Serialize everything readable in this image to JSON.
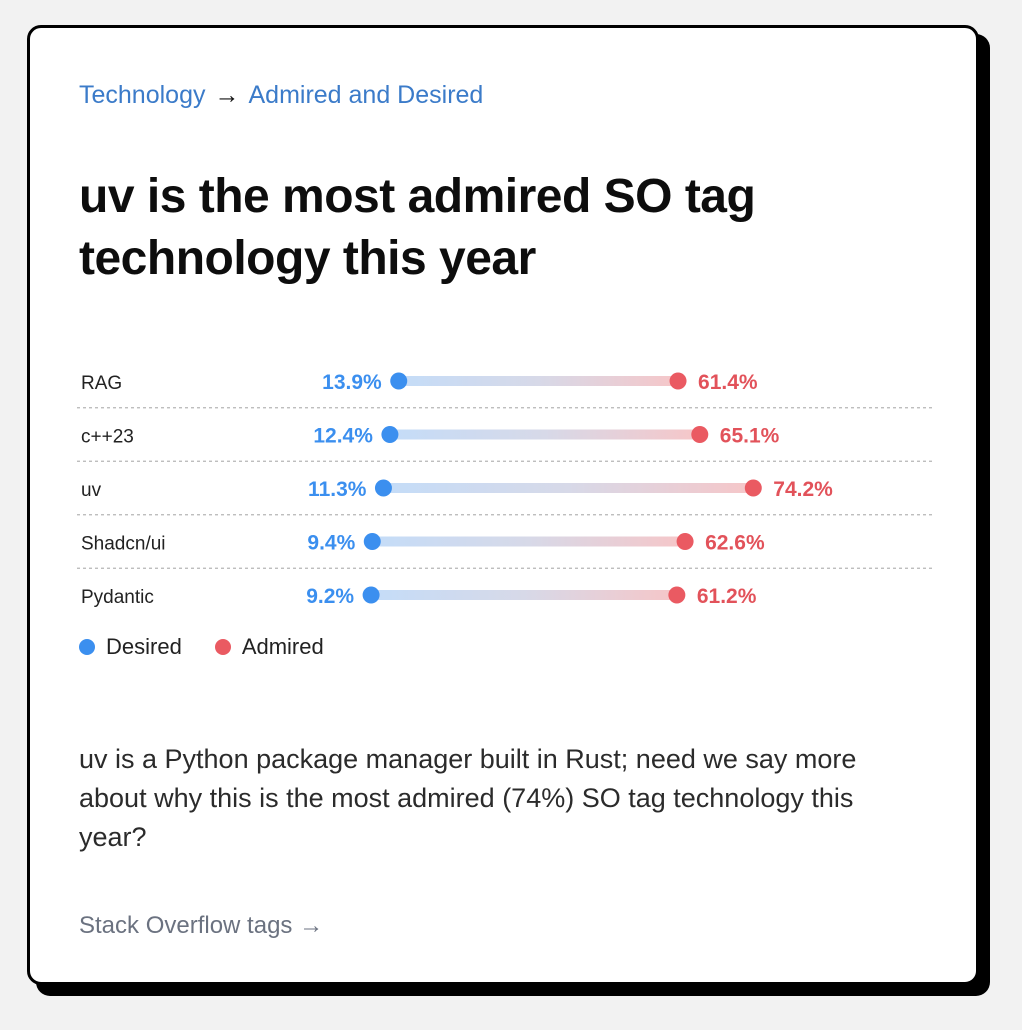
{
  "breadcrumb": {
    "section": "Technology",
    "separator": "→",
    "page": "Admired and Desired"
  },
  "title": "uv is the most admired SO tag technology this year",
  "legend": {
    "desired_label": "Desired",
    "admired_label": "Admired"
  },
  "colors": {
    "desired": "#3b8fef",
    "admired": "#ea5a62",
    "desired_text": "#3b8fef",
    "admired_text": "#e2525a"
  },
  "chart_data": {
    "type": "dumbbell",
    "series": [
      {
        "name": "Desired"
      },
      {
        "name": "Admired"
      }
    ],
    "unit": "%",
    "rows": [
      {
        "label": "RAG",
        "desired": 13.9,
        "admired": 61.4,
        "desired_label": "13.9%",
        "admired_label": "61.4%"
      },
      {
        "label": "c++23",
        "desired": 12.4,
        "admired": 65.1,
        "desired_label": "12.4%",
        "admired_label": "65.1%"
      },
      {
        "label": "uv",
        "desired": 11.3,
        "admired": 74.2,
        "desired_label": "11.3%",
        "admired_label": "74.2%"
      },
      {
        "label": "Shadcn/ui",
        "desired": 9.4,
        "admired": 62.6,
        "desired_label": "9.4%",
        "admired_label": "62.6%"
      },
      {
        "label": "Pydantic",
        "desired": 9.2,
        "admired": 61.2,
        "desired_label": "9.2%",
        "admired_label": "61.2%"
      }
    ]
  },
  "description": "uv is a Python package manager built in Rust; need we say more about why this is the most admired (74%) SO tag technology this year?",
  "footer_link": "Stack Overflow tags →"
}
